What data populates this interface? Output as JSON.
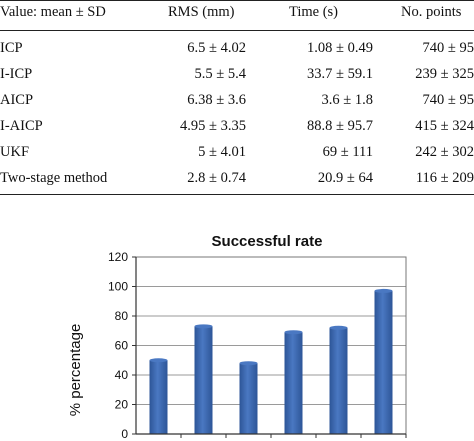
{
  "table": {
    "headers": [
      "Value: mean ± SD",
      "RMS (mm)",
      "Time (s)",
      "No. points"
    ],
    "rows": [
      [
        "ICP",
        "6.5 ± 4.02",
        "1.08 ± 0.49",
        "740 ± 95"
      ],
      [
        "I-ICP",
        "5.5 ± 5.4",
        "33.7 ± 59.1",
        "239 ± 325"
      ],
      [
        "AICP",
        "6.38 ± 3.6",
        "3.6 ± 1.8",
        "740 ± 95"
      ],
      [
        "I-AICP",
        "4.95 ± 3.35",
        "88.8 ± 95.7",
        "415 ± 324"
      ],
      [
        "UKF",
        "5 ± 4.01",
        "69 ± 111",
        "242 ± 302"
      ],
      [
        "Two-stage method",
        "2.8 ± 0.74",
        "20.9 ± 64",
        "116 ± 209"
      ]
    ]
  },
  "chart_data": {
    "type": "bar",
    "title": "Successful rate",
    "ylabel": "% percentage",
    "xlabel": "",
    "categories": [
      "",
      "",
      "",
      "",
      "",
      ""
    ],
    "values": [
      50,
      73,
      48,
      69,
      72,
      97
    ],
    "ylim": [
      0,
      120
    ],
    "yticks": [
      "0",
      "20",
      "40",
      "60",
      "80",
      "100",
      "120"
    ],
    "grid": true,
    "bar_color": "#4a78c2",
    "bar_color_dark": "#2d5597",
    "grid_color": "#9a9a9a"
  }
}
